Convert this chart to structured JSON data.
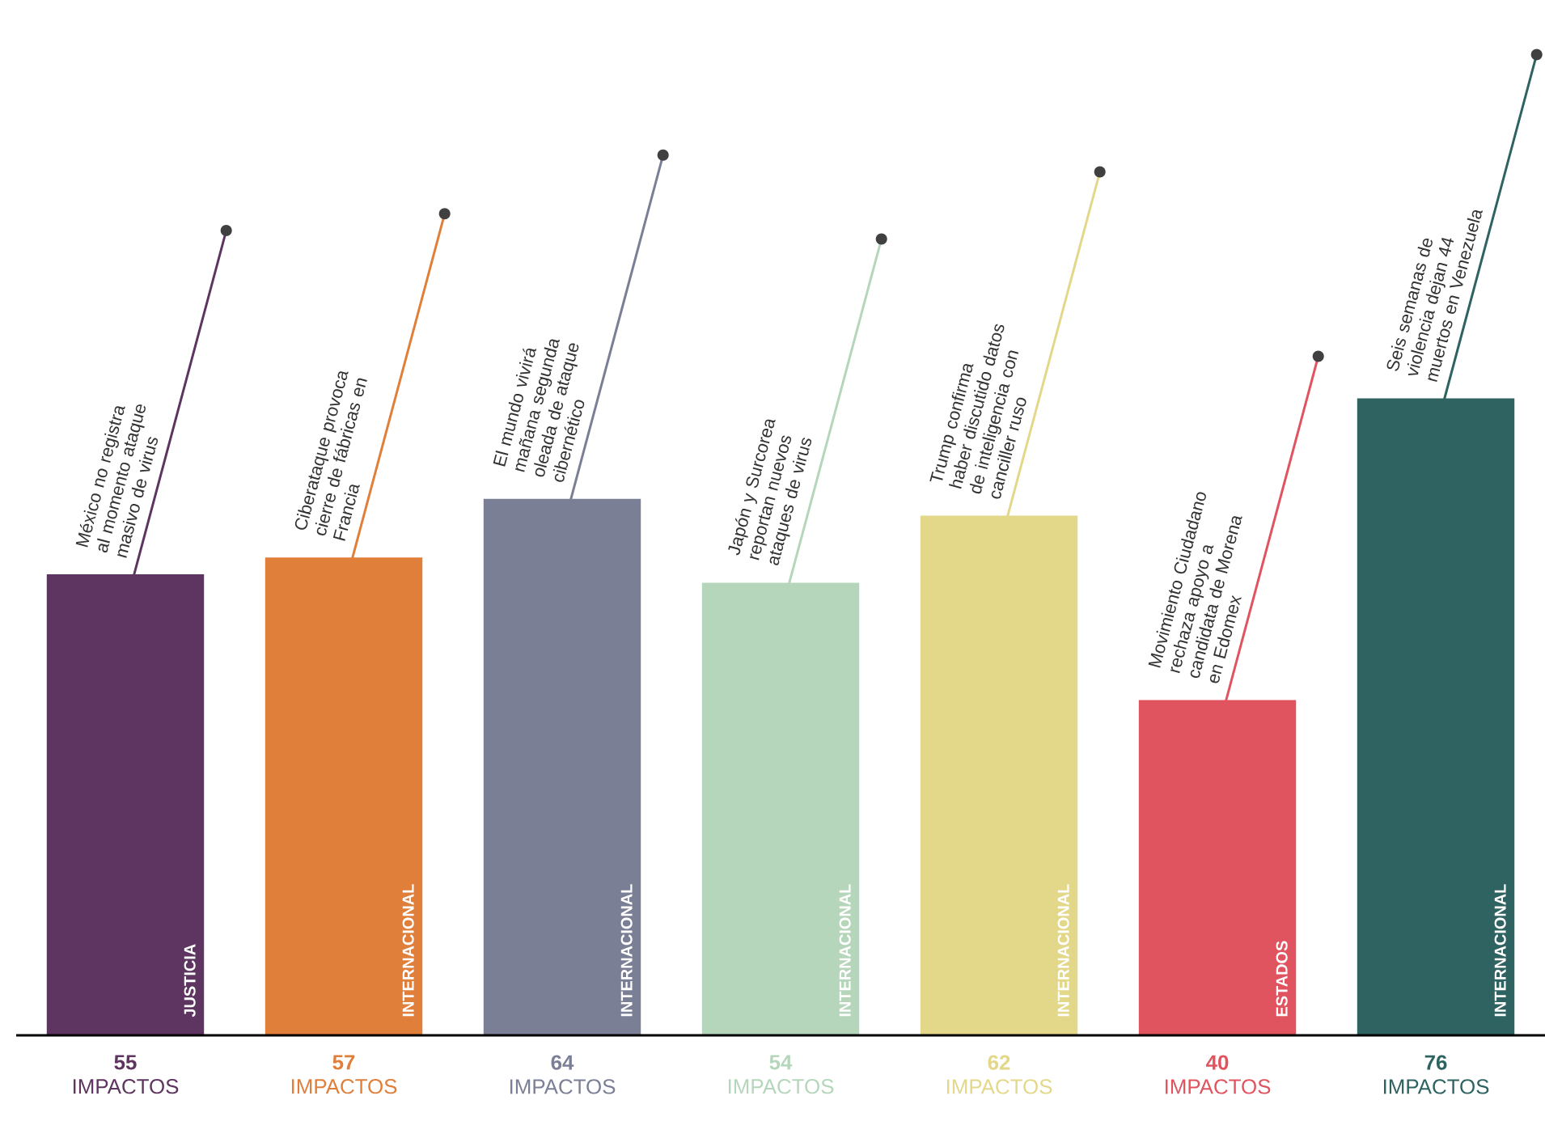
{
  "chart_data": {
    "type": "bar",
    "categories": [
      "JUSTICIA",
      "INTERNACIONAL",
      "INTERNACIONAL",
      "INTERNACIONAL",
      "INTERNACIONAL",
      "ESTADOS",
      "INTERNACIONAL"
    ],
    "values": [
      55,
      57,
      64,
      54,
      62,
      40,
      76
    ],
    "value_labels": [
      "**55** IMPACTOS",
      "**57** IMPACTOS",
      "**64** IMPACTOS",
      "**54** IMPACTOS",
      "**62** IMPACTOS",
      "**40** IMPACTOS",
      "**76** IMPACTOS"
    ],
    "colors": [
      "#5e3560",
      "#e07f3a",
      "#7a7f96",
      "#b5d6bb",
      "#e3d88a",
      "#e05460",
      "#2e6362"
    ],
    "annotations": [
      "México no registra al momento ataque masivo de virus",
      "Ciberataque provoca cierre de fábricas en Francia",
      "El mundo vivirá mañana segunda oleada de ataque cibernético",
      "Japón y Surcorea reportan nuevos ataques de virus",
      "Trump confirma haber discutido datos de inteligencia con canciller ruso",
      "Movimiento Ciudadano rechaza apoyo a candidata de Morena en Edomex",
      "Seis semanas de violencia dejan 44 muertos en Venezuela"
    ]
  }
}
